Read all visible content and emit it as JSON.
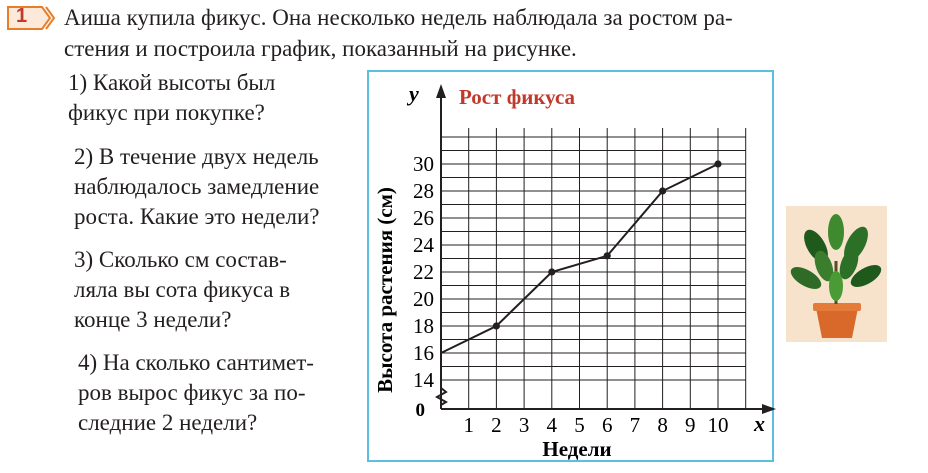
{
  "task": {
    "number": "1",
    "intro_line1": "Аиша купила  фикус. Она  несколько недель наблюдала за ростом ра-",
    "intro_line2": "стения и построила график, показанный на  рисунке."
  },
  "questions": [
    {
      "lines": [
        "1) Какой высоты был",
        "фикус при покупке?"
      ]
    },
    {
      "lines": [
        "2) В течение двух недель",
        "наблюдалось замедление",
        "роста. Какие это недели?"
      ]
    },
    {
      "lines": [
        "3) Сколько см состав-",
        "ляла вы сота фикуса в",
        "конце 3 недели?"
      ]
    },
    {
      "lines": [
        "4) На сколько сантимет-",
        "ров вырос фикус за по-",
        "следние 2 недели?"
      ]
    }
  ],
  "colors": {
    "badge": "#c0392b",
    "frame": "#5bbfe0",
    "title": "#c0392b",
    "line": "#231f20"
  },
  "chart_data": {
    "type": "line",
    "title": "Рост фикуса",
    "xlabel": "Недели",
    "ylabel": "Высота  растения (см)",
    "x_axis_letter": "x",
    "y_axis_letter": "y",
    "origin_label": "0",
    "x_ticks": [
      "1",
      "2",
      "3",
      "4",
      "5",
      "6",
      "7",
      "8",
      "9",
      "10"
    ],
    "y_ticks": [
      "14",
      "16",
      "18",
      "20",
      "22",
      "24",
      "26",
      "28",
      "30"
    ],
    "xlim": [
      0,
      11
    ],
    "ylim": [
      13,
      32
    ],
    "y_axis_break": true,
    "grid": true,
    "x": [
      0,
      2,
      4,
      6,
      8,
      10
    ],
    "y": [
      16,
      18,
      22,
      23.2,
      28,
      30
    ]
  },
  "image": {
    "icon": "ficus-plant-in-pot"
  }
}
